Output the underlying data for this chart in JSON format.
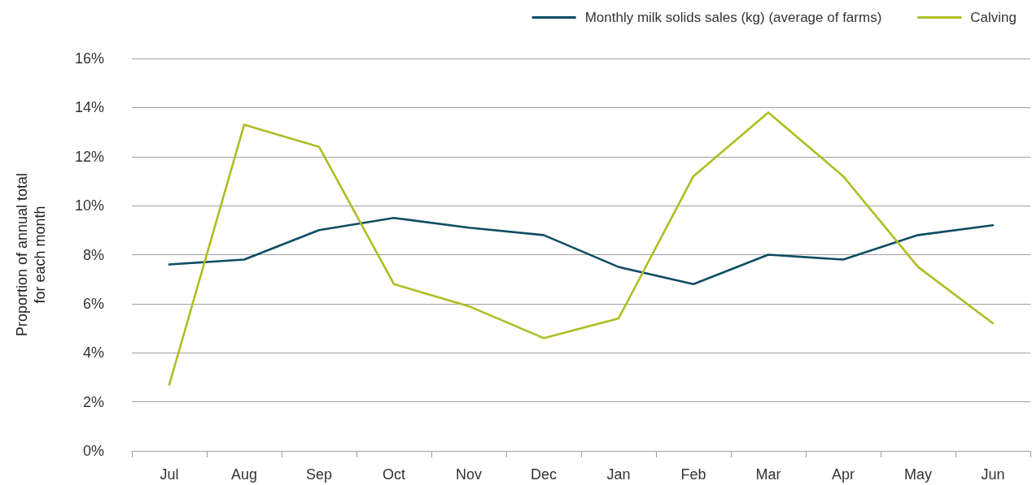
{
  "chart_data": {
    "type": "line",
    "ylabel": "Proportion of annual total\nfor each month",
    "categories": [
      "Jul",
      "Aug",
      "Sep",
      "Oct",
      "Nov",
      "Dec",
      "Jan",
      "Feb",
      "Mar",
      "Apr",
      "May",
      "Jun"
    ],
    "series": [
      {
        "name": "Monthly milk solids sales (kg) (average of farms)",
        "color": "#0e4d64",
        "values": [
          7.6,
          7.8,
          9.0,
          9.5,
          9.1,
          8.8,
          7.5,
          6.8,
          8.0,
          7.8,
          8.8,
          9.2
        ]
      },
      {
        "name": "Calving",
        "color": "#afbd22",
        "values": [
          2.7,
          13.3,
          12.4,
          6.8,
          5.9,
          4.6,
          5.4,
          11.2,
          13.8,
          11.2,
          7.5,
          5.2
        ]
      }
    ],
    "ylim": [
      0,
      16
    ],
    "yticks": [
      {
        "value": 0,
        "label": "0%"
      },
      {
        "value": 2,
        "label": "2%"
      },
      {
        "value": 4,
        "label": "4%"
      },
      {
        "value": 6,
        "label": "6%"
      },
      {
        "value": 8,
        "label": "8%"
      },
      {
        "value": 10,
        "label": "10%"
      },
      {
        "value": 12,
        "label": "12%"
      },
      {
        "value": 14,
        "label": "14%"
      },
      {
        "value": 16,
        "label": "16%"
      }
    ],
    "grid": "y",
    "legend": "top right",
    "marker": "none",
    "line_style": "solid"
  }
}
